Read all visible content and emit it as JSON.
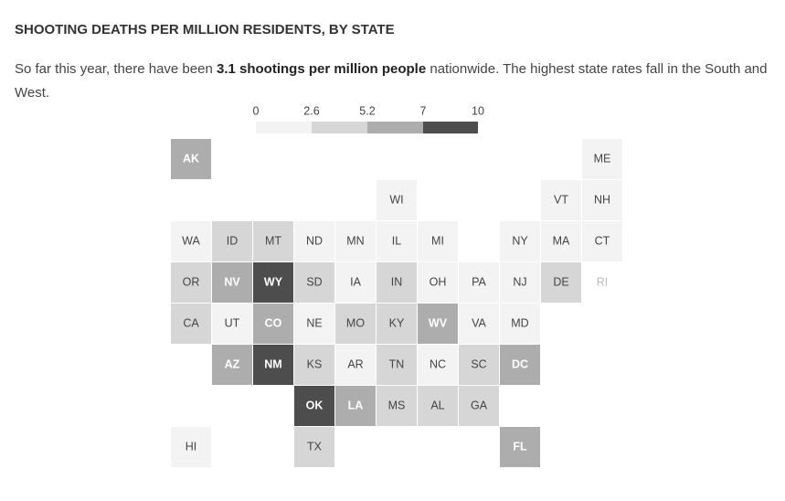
{
  "chart_data": {
    "type": "tilemap",
    "title": "SHOOTING DEATHS PER MILLION RESIDENTS, BY STATE",
    "subtitle": [
      "So far this year, there have been ",
      "3.1 shootings per million people",
      " nationwide. The highest state rates fall in the South and West."
    ],
    "legend": {
      "bins": [
        0,
        2.6,
        5.2,
        7,
        10
      ],
      "colors": [
        "#f3f3f3",
        "#d6d6d6",
        "#adadad",
        "#4d4d4d"
      ]
    },
    "states": [
      {
        "label": "AK",
        "color": "#adadad"
      },
      {
        "label": "ME",
        "color": "#f3f3f3"
      },
      {
        "label": "WI",
        "color": "#f3f3f3"
      },
      {
        "label": "VT",
        "color": "#f3f3f3"
      },
      {
        "label": "NH",
        "color": "#f3f3f3"
      },
      {
        "label": "WA",
        "color": "#f3f3f3"
      },
      {
        "label": "ID",
        "color": "#d6d6d6"
      },
      {
        "label": "MT",
        "color": "#d6d6d6"
      },
      {
        "label": "ND",
        "color": "#f3f3f3"
      },
      {
        "label": "MN",
        "color": "#f3f3f3"
      },
      {
        "label": "IL",
        "color": "#f3f3f3"
      },
      {
        "label": "MI",
        "color": "#f3f3f3"
      },
      {
        "label": "NY",
        "color": "#f3f3f3"
      },
      {
        "label": "MA",
        "color": "#f3f3f3"
      },
      {
        "label": "CT",
        "color": "#f3f3f3"
      },
      {
        "label": "OR",
        "color": "#d6d6d6"
      },
      {
        "label": "NV",
        "color": "#adadad"
      },
      {
        "label": "WY",
        "color": "#4d4d4d"
      },
      {
        "label": "SD",
        "color": "#d6d6d6"
      },
      {
        "label": "IA",
        "color": "#f3f3f3"
      },
      {
        "label": "IN",
        "color": "#d6d6d6"
      },
      {
        "label": "OH",
        "color": "#f3f3f3"
      },
      {
        "label": "PA",
        "color": "#f3f3f3"
      },
      {
        "label": "NJ",
        "color": "#f3f3f3"
      },
      {
        "label": "DE",
        "color": "#d6d6d6"
      },
      {
        "label": "RI",
        "color": "#ffffff"
      },
      {
        "label": "CA",
        "color": "#d6d6d6"
      },
      {
        "label": "UT",
        "color": "#f3f3f3"
      },
      {
        "label": "CO",
        "color": "#adadad"
      },
      {
        "label": "NE",
        "color": "#f3f3f3"
      },
      {
        "label": "MO",
        "color": "#d6d6d6"
      },
      {
        "label": "KY",
        "color": "#d6d6d6"
      },
      {
        "label": "WV",
        "color": "#adadad"
      },
      {
        "label": "VA",
        "color": "#f3f3f3"
      },
      {
        "label": "MD",
        "color": "#f3f3f3"
      },
      {
        "label": "AZ",
        "color": "#adadad"
      },
      {
        "label": "NM",
        "color": "#4d4d4d"
      },
      {
        "label": "KS",
        "color": "#d6d6d6"
      },
      {
        "label": "AR",
        "color": "#f3f3f3"
      },
      {
        "label": "TN",
        "color": "#d6d6d6"
      },
      {
        "label": "NC",
        "color": "#f3f3f3"
      },
      {
        "label": "SC",
        "color": "#d6d6d6"
      },
      {
        "label": "DC",
        "color": "#adadad"
      },
      {
        "label": "OK",
        "color": "#4d4d4d"
      },
      {
        "label": "LA",
        "color": "#adadad"
      },
      {
        "label": "MS",
        "color": "#d6d6d6"
      },
      {
        "label": "AL",
        "color": "#d6d6d6"
      },
      {
        "label": "GA",
        "color": "#d6d6d6"
      },
      {
        "label": "HI",
        "color": "#f3f3f3"
      },
      {
        "label": "TX",
        "color": "#d6d6d6"
      },
      {
        "label": "FL",
        "color": "#adadad"
      }
    ]
  }
}
